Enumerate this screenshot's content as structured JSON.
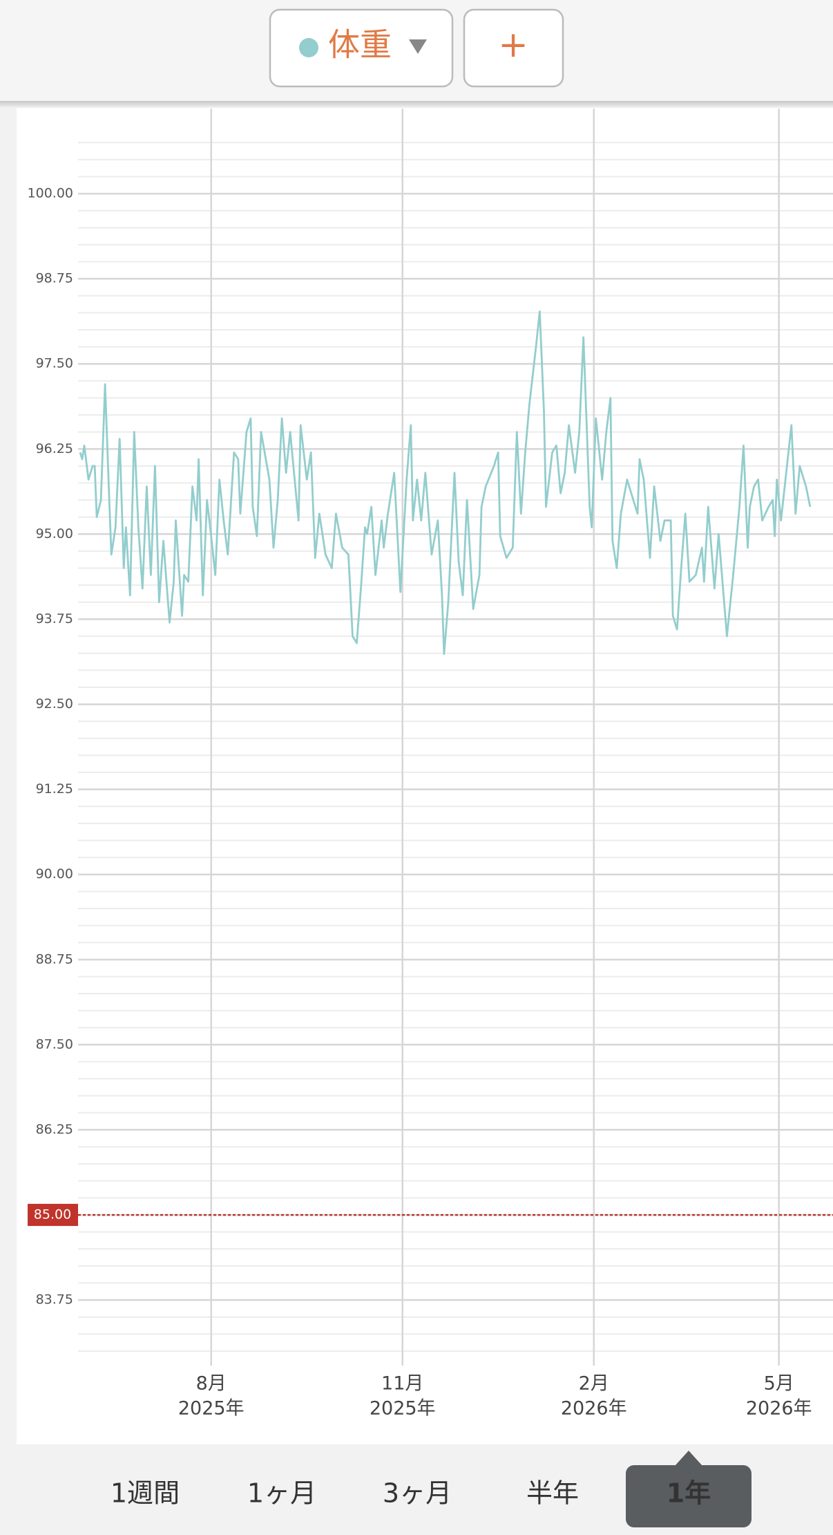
{
  "header": {
    "metric": "体重",
    "add_button": "+"
  },
  "chart_data": {
    "type": "line",
    "series": [
      {
        "color": "#93cdcd",
        "x": [
          1,
          2,
          3,
          5,
          7,
          8,
          9,
          11,
          13,
          15,
          16,
          18,
          20,
          22,
          23,
          25,
          27,
          29,
          31,
          33,
          35,
          37,
          39,
          41,
          44,
          46,
          47,
          50,
          51,
          53,
          55,
          57,
          58,
          60,
          62,
          64,
          66,
          68,
          70,
          72,
          75,
          77,
          78,
          81,
          83,
          84,
          86,
          88,
          92,
          94,
          96,
          98,
          100,
          102,
          106,
          107,
          110,
          112,
          114,
          116,
          119,
          122,
          124,
          127,
          130,
          132,
          134,
          136,
          138,
          139,
          141,
          143,
          146,
          147,
          149,
          152,
          155,
          158,
          160,
          161,
          163,
          165,
          167,
          170,
          173,
          175,
          176,
          178,
          181,
          183,
          185,
          187,
          190,
          193,
          194,
          196,
          200,
          202,
          203,
          206,
          209,
          211,
          213,
          215,
          217,
          220,
          222,
          224,
          225,
          228,
          230,
          232,
          234,
          236,
          239,
          241,
          243,
          246,
          247,
          249,
          252,
          254,
          256,
          257,
          259,
          261,
          264,
          266,
          269,
          270,
          272,
          275,
          277,
          280,
          282,
          285,
          286,
          288,
          290,
          292,
          294,
          297,
          300,
          301,
          303,
          306,
          308,
          312,
          315,
          318,
          320,
          322,
          323,
          325,
          327,
          329,
          332,
          334,
          335,
          336,
          338,
          343,
          345,
          347,
          350,
          352
        ],
        "values": [
          96.2,
          96.1,
          96.3,
          95.8,
          96.0,
          96.0,
          95.25,
          95.5,
          97.2,
          95.5,
          94.7,
          95.1,
          96.4,
          94.5,
          95.1,
          94.1,
          96.5,
          95.1,
          94.2,
          95.7,
          94.4,
          96.0,
          94.0,
          94.9,
          93.7,
          94.3,
          95.2,
          93.8,
          94.4,
          94.3,
          95.7,
          95.2,
          96.1,
          94.1,
          95.5,
          94.97,
          94.4,
          95.8,
          95.2,
          94.7,
          96.2,
          96.1,
          95.3,
          96.5,
          96.7,
          95.4,
          94.97,
          96.5,
          95.8,
          94.8,
          95.5,
          96.7,
          95.9,
          96.5,
          95.2,
          96.6,
          95.8,
          96.2,
          94.65,
          95.3,
          94.7,
          94.5,
          95.3,
          94.8,
          94.7,
          93.5,
          93.4,
          94.2,
          95.1,
          95.0,
          95.4,
          94.4,
          95.2,
          94.8,
          95.3,
          95.9,
          94.15,
          95.8,
          96.6,
          95.2,
          95.8,
          95.2,
          95.9,
          94.7,
          95.2,
          94.1,
          93.24,
          94.0,
          95.9,
          94.6,
          94.1,
          95.5,
          93.9,
          94.4,
          95.4,
          95.7,
          96.0,
          96.2,
          94.97,
          94.65,
          94.8,
          96.5,
          95.3,
          96.2,
          96.9,
          97.7,
          98.27,
          96.8,
          95.4,
          96.2,
          96.3,
          95.6,
          95.9,
          96.6,
          95.9,
          96.5,
          97.89,
          95.4,
          95.1,
          96.7,
          95.8,
          96.5,
          97.0,
          94.9,
          94.5,
          95.3,
          95.8,
          95.6,
          95.3,
          96.1,
          95.8,
          94.65,
          95.7,
          94.9,
          95.2,
          95.2,
          93.8,
          93.6,
          94.5,
          95.3,
          94.3,
          94.4,
          94.8,
          94.3,
          95.4,
          94.2,
          95.0,
          93.5,
          94.4,
          95.4,
          96.3,
          94.8,
          95.4,
          95.7,
          95.8,
          95.2,
          95.4,
          95.5,
          94.97,
          95.8,
          95.2,
          96.6,
          95.3,
          96.0,
          95.7,
          95.4
        ]
      }
    ],
    "xlim": [
      0,
      363
    ],
    "xticks": [
      {
        "value": 64,
        "label": "8月",
        "sublabel": "2025年"
      },
      {
        "value": 156,
        "label": "11月",
        "sublabel": "2025年"
      },
      {
        "value": 248,
        "label": "2月",
        "sublabel": "2026年"
      },
      {
        "value": 337,
        "label": "5月",
        "sublabel": "2026年"
      }
    ],
    "ylim": [
      83,
      101.25
    ],
    "yticks": [
      83.75,
      {
        "value": 85,
        "label": "85.00"
      },
      86.25,
      {
        "value": 87.5,
        "label": "87.50"
      },
      88.75,
      {
        "value": 90,
        "label": "90.00"
      },
      91.25,
      {
        "value": 92.5,
        "label": "92.50"
      },
      93.75,
      {
        "value": 95,
        "label": "95.00"
      },
      96.25,
      {
        "value": 97.5,
        "label": "97.50"
      },
      98.75,
      {
        "value": 100,
        "label": "100.00"
      }
    ],
    "minor_grid_step": 0.25,
    "grid": true,
    "target": {
      "value": 85,
      "label": "85.00",
      "color": "#c0342b"
    }
  },
  "range_options": [
    "1週間",
    "1ヶ月",
    "3ヶ月",
    "半年",
    "1年"
  ],
  "selected_range": 4
}
